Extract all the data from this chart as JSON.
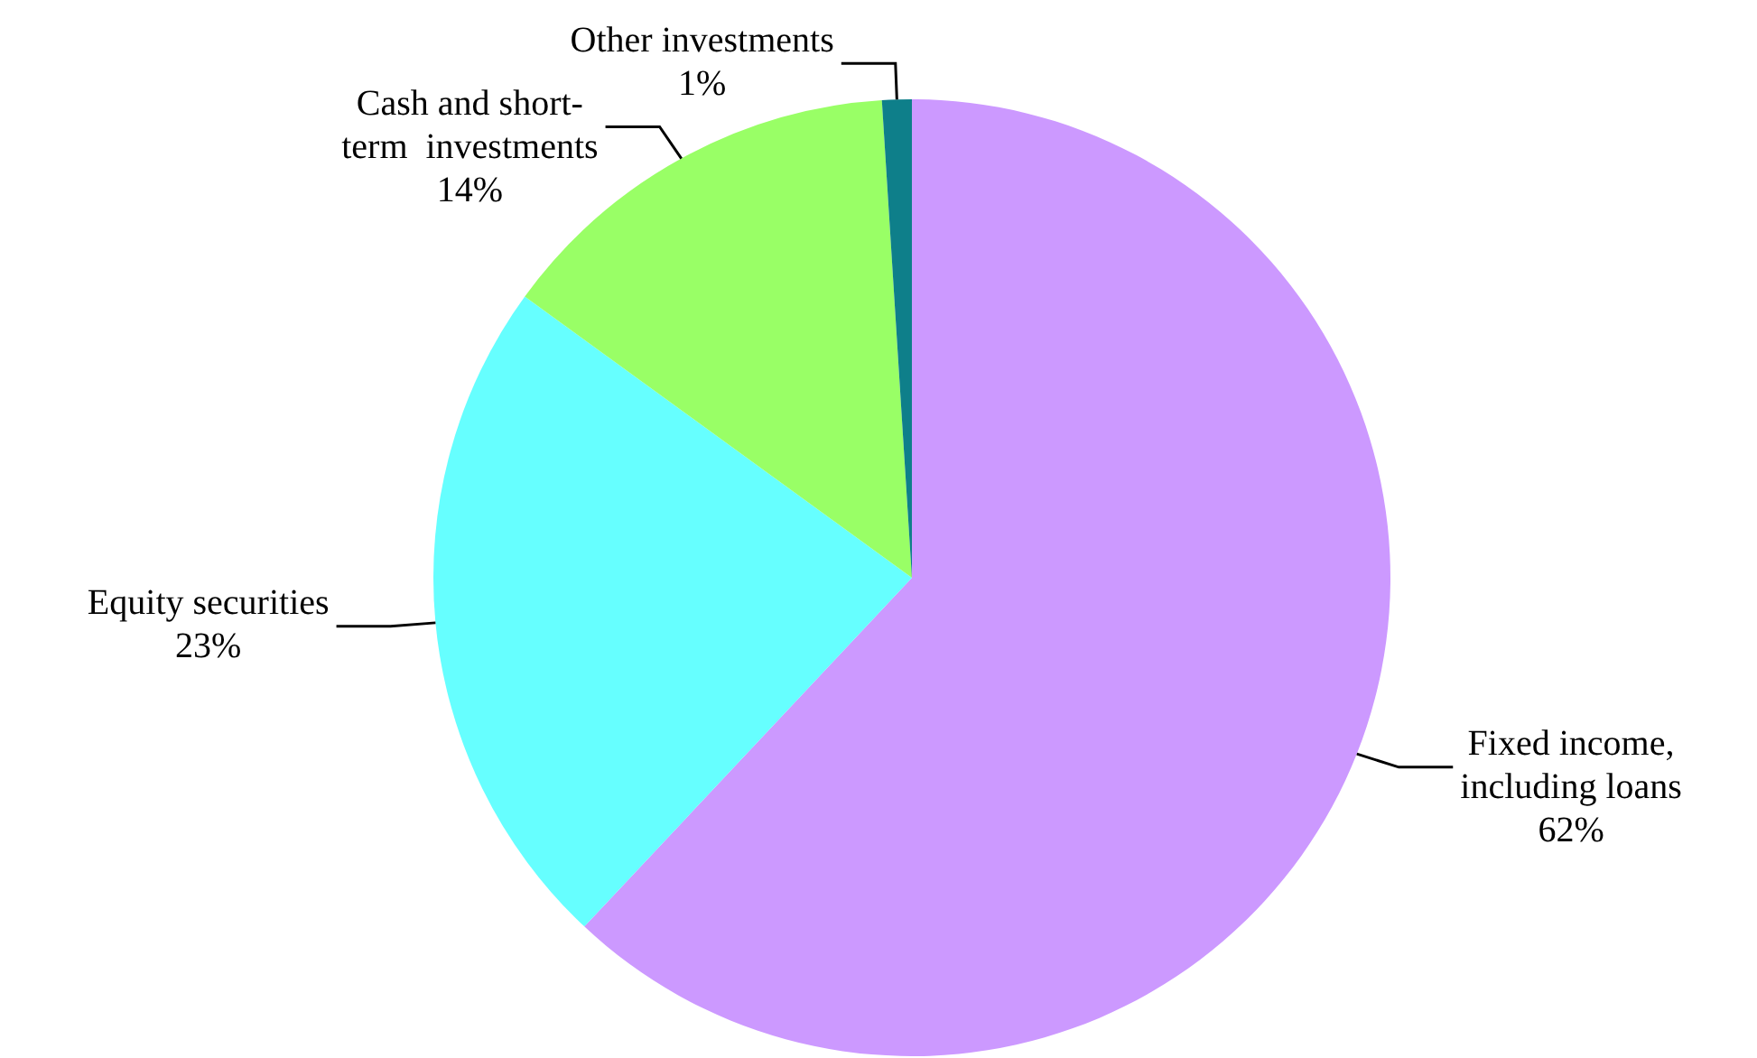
{
  "chart_data": {
    "type": "pie",
    "categories": [
      "Fixed income,\nincluding loans",
      "Equity securities",
      "Cash and short-\nterm  investments",
      "Other investments"
    ],
    "values": [
      62,
      23,
      14,
      1
    ],
    "colors": [
      "#cc99ff",
      "#66ffff",
      "#99ff66",
      "#0e7f8a"
    ],
    "value_labels": [
      "62%",
      "23%",
      "14%",
      "1%"
    ],
    "legend": false
  }
}
